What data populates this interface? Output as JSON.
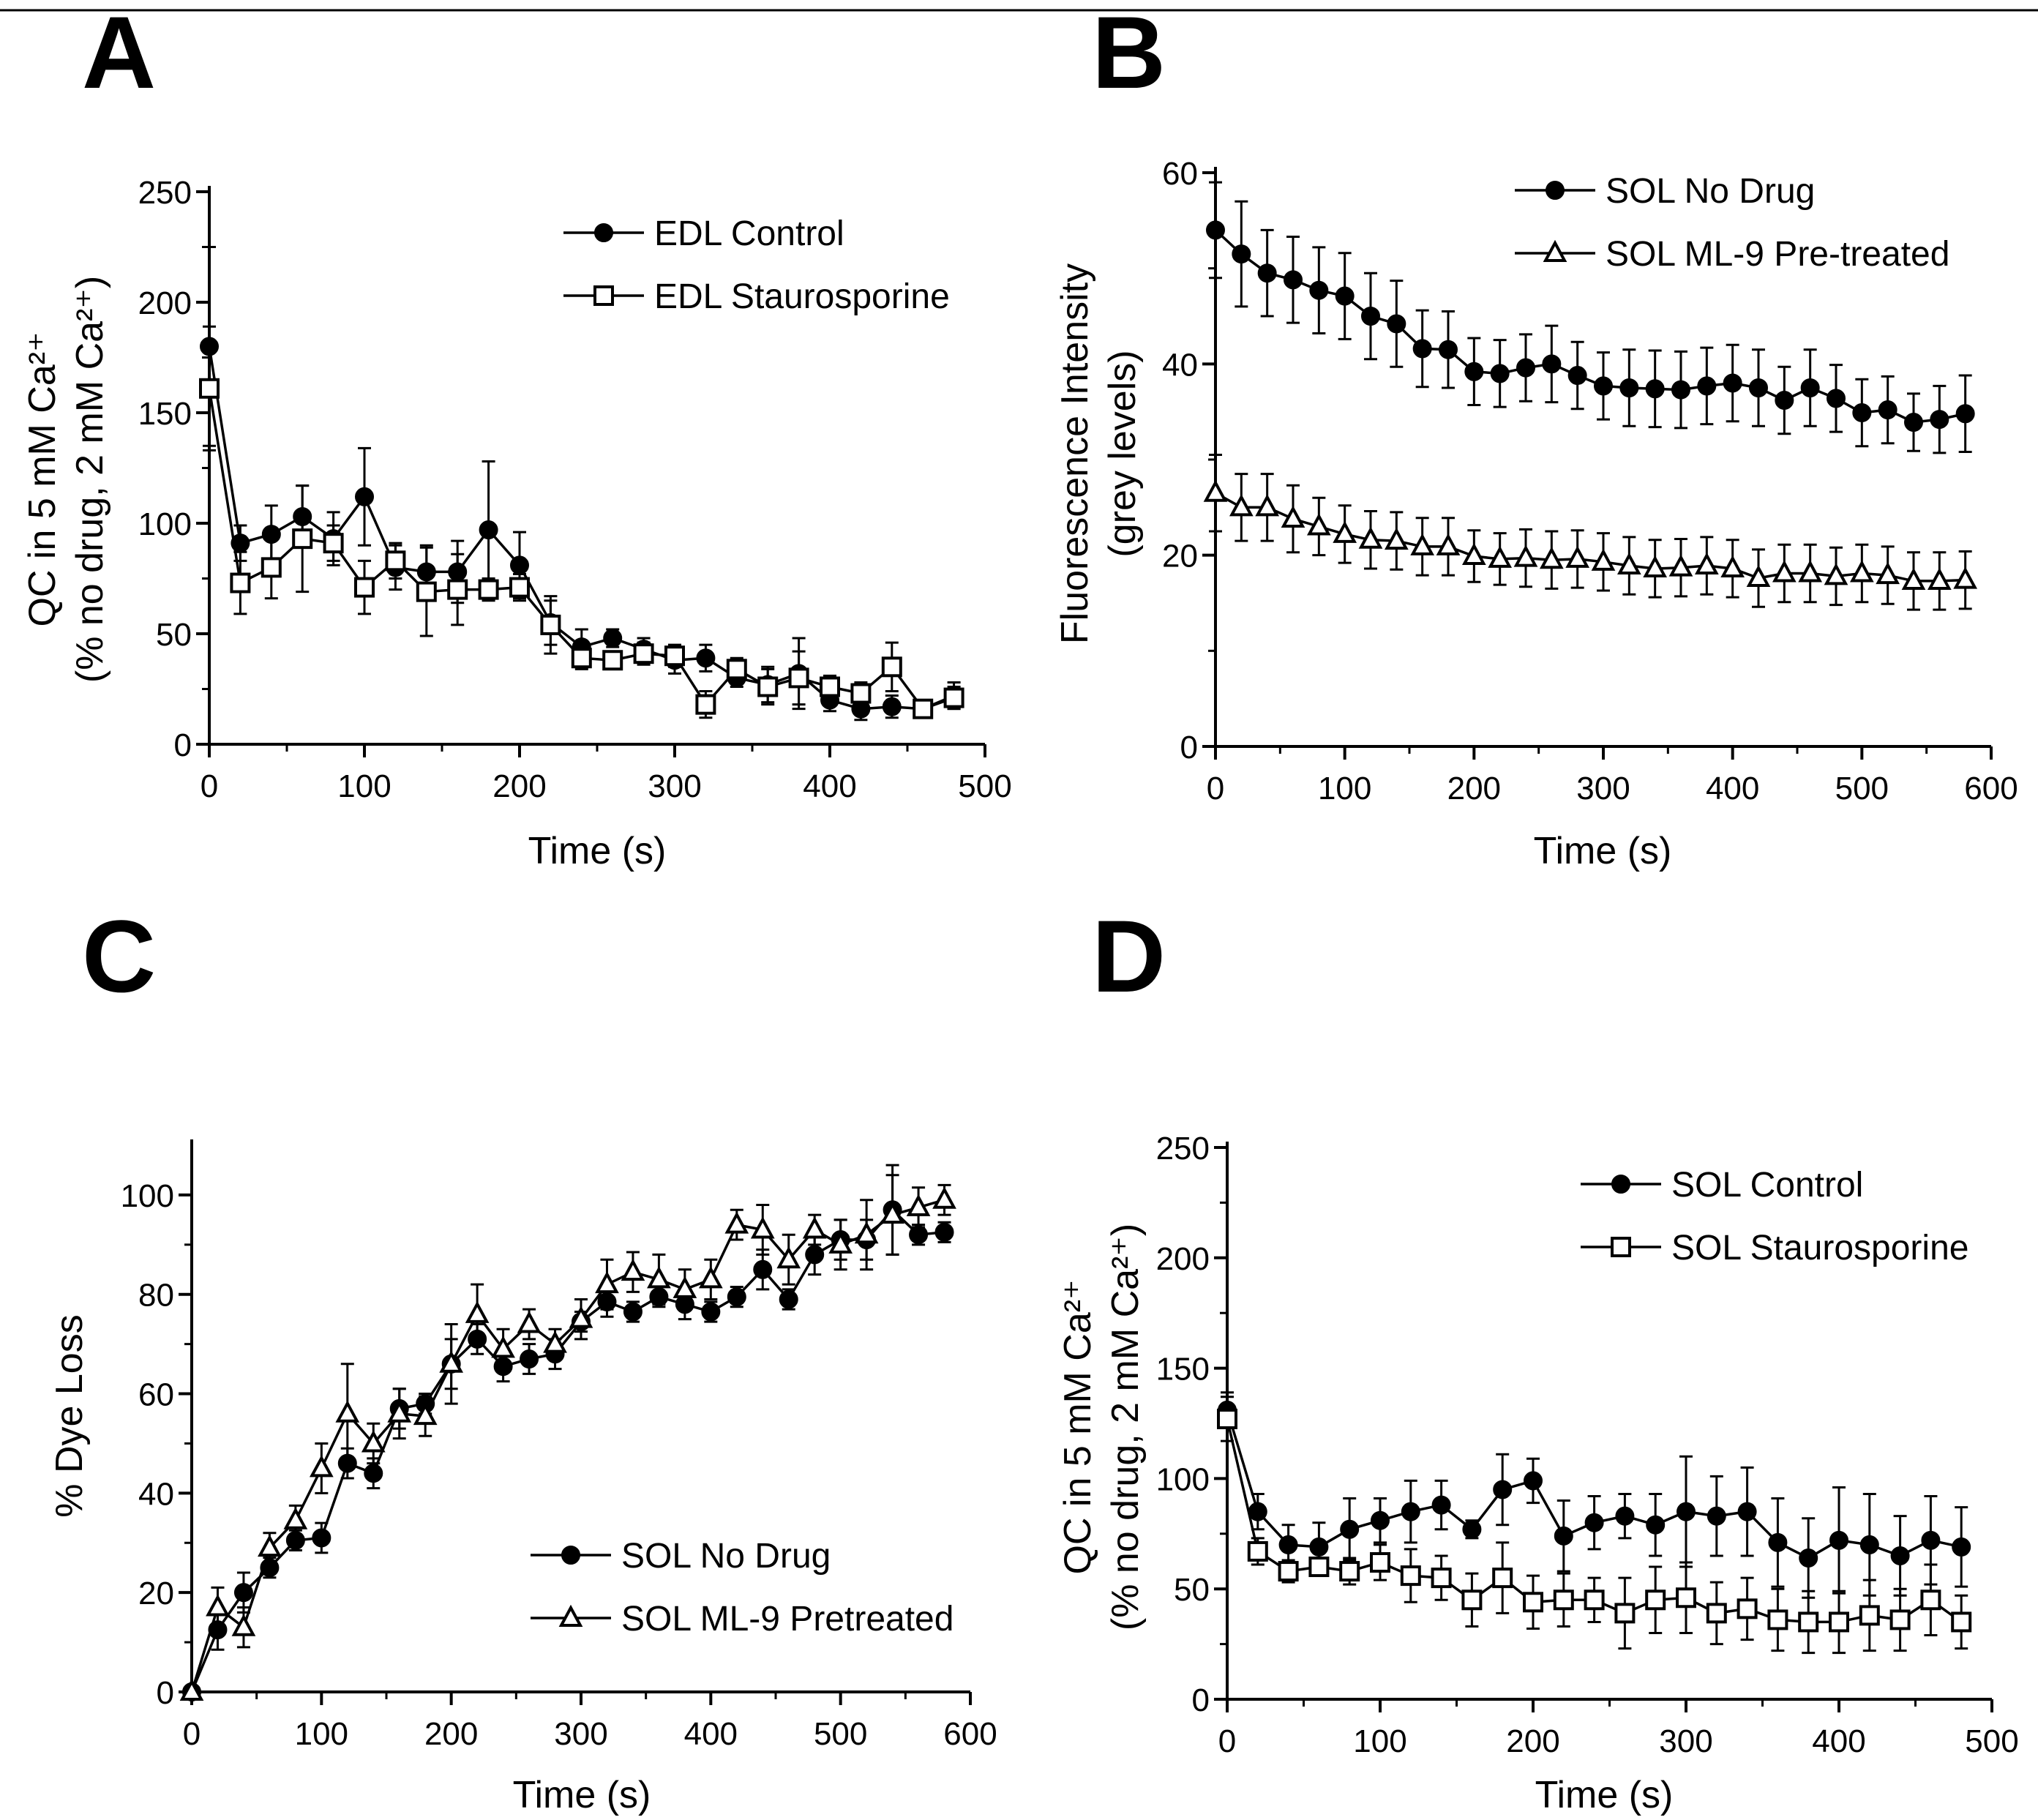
{
  "figure": {
    "top_rule": true
  },
  "chart_data": [
    {
      "panel": "A",
      "type": "line",
      "xlabel": "Time (s)",
      "ylabel_line1": "QC in 5 mM Ca²⁺",
      "ylabel_line2": "(% no drug, 2 mM Ca²⁺)",
      "xlim": [
        0,
        500
      ],
      "ylim": [
        0,
        250
      ],
      "xticks": [
        0,
        100,
        200,
        300,
        400,
        500
      ],
      "yticks": [
        0,
        50,
        100,
        150,
        200,
        250
      ],
      "legend_position": "top-right",
      "series": [
        {
          "name": "EDL Control",
          "marker": "filled-circle",
          "x": [
            0,
            20,
            40,
            60,
            80,
            100,
            120,
            140,
            160,
            180,
            200,
            220,
            240,
            260,
            280,
            300,
            320,
            340,
            360,
            380,
            400,
            420,
            440,
            460,
            480
          ],
          "y": [
            180,
            91,
            95,
            103,
            93,
            112,
            80,
            78,
            78,
            97,
            81,
            55,
            44,
            48,
            43,
            38,
            39,
            30,
            27,
            32,
            20,
            16,
            17,
            16,
            22
          ],
          "err": [
            45,
            8,
            13,
            14,
            12,
            22,
            10,
            12,
            14,
            31,
            15,
            10,
            8,
            4,
            5,
            6,
            6,
            4,
            8,
            16,
            5,
            5,
            5,
            3,
            6
          ]
        },
        {
          "name": "EDL Staurosporine",
          "marker": "open-square",
          "x": [
            0,
            20,
            40,
            60,
            80,
            100,
            120,
            140,
            160,
            180,
            200,
            220,
            240,
            260,
            280,
            300,
            320,
            340,
            360,
            380,
            400,
            420,
            440,
            460,
            480
          ],
          "y": [
            161,
            73,
            80,
            93,
            91,
            71,
            83,
            69,
            70,
            70,
            71,
            54,
            39,
            38,
            41,
            40,
            18,
            34,
            26,
            30,
            26,
            23,
            35,
            16,
            21
          ],
          "err": [
            28,
            14,
            14,
            24,
            8,
            12,
            8,
            20,
            16,
            5,
            6,
            13,
            5,
            4,
            5,
            5,
            6,
            5,
            8,
            12,
            5,
            5,
            11,
            3,
            5
          ]
        }
      ]
    },
    {
      "panel": "B",
      "type": "line",
      "xlabel": "Time (s)",
      "ylabel_line1": "Fluorescence Intensity",
      "ylabel_line2": "(grey levels)",
      "xlim": [
        0,
        600
      ],
      "ylim": [
        0,
        60
      ],
      "xticks": [
        0,
        100,
        200,
        300,
        400,
        500,
        600
      ],
      "yticks": [
        0,
        20,
        40,
        60
      ],
      "legend_position": "top-right",
      "series": [
        {
          "name": "SOL No Drug",
          "marker": "filled-circle",
          "x": [
            0,
            20,
            40,
            60,
            80,
            100,
            120,
            140,
            160,
            180,
            200,
            220,
            240,
            260,
            280,
            300,
            320,
            340,
            360,
            380,
            400,
            420,
            440,
            460,
            480,
            500,
            520,
            540,
            560,
            580
          ],
          "y": [
            54,
            51.5,
            49.5,
            48.8,
            47.7,
            47.1,
            45,
            44.2,
            41.6,
            41.5,
            39.2,
            39,
            39.6,
            40,
            38.8,
            37.7,
            37.5,
            37.4,
            37.3,
            37.7,
            38,
            37.5,
            36.2,
            37.5,
            36.4,
            34.9,
            35.2,
            33.9,
            34.2,
            34.8
          ],
          "err": [
            5,
            5.5,
            4.5,
            4.5,
            4.5,
            4.5,
            4.5,
            4.5,
            4,
            4,
            3.5,
            3.5,
            3.5,
            4,
            3.5,
            3.5,
            4,
            4,
            4,
            4,
            4,
            4,
            3.5,
            4,
            3.5,
            3.5,
            3.5,
            3,
            3.5,
            4
          ]
        },
        {
          "name": "SOL ML-9 Pre-treated",
          "marker": "open-triangle",
          "x": [
            0,
            20,
            40,
            60,
            80,
            100,
            120,
            140,
            160,
            180,
            200,
            220,
            240,
            260,
            280,
            300,
            320,
            340,
            360,
            380,
            400,
            420,
            440,
            460,
            480,
            500,
            520,
            540,
            560,
            580
          ],
          "y": [
            26.5,
            25,
            25,
            23.8,
            23,
            22.2,
            21.6,
            21.5,
            20.9,
            20.9,
            19.9,
            19.6,
            19.7,
            19.5,
            19.6,
            19.3,
            18.9,
            18.6,
            18.7,
            18.9,
            18.6,
            17.6,
            18.1,
            18.1,
            17.8,
            18.1,
            17.9,
            17.3,
            17.3,
            17.4
          ],
          "err": [
            4,
            3.5,
            3.5,
            3.5,
            3,
            3,
            3,
            3,
            3,
            3,
            2.7,
            2.7,
            3,
            3,
            3,
            3,
            3,
            3,
            3,
            3,
            3,
            3,
            3,
            3,
            3,
            3,
            3,
            3,
            3,
            3
          ]
        }
      ]
    },
    {
      "panel": "C",
      "type": "line",
      "xlabel": "Time (s)",
      "ylabel_line1": "% Dye Loss",
      "ylabel_line2": "",
      "xlim": [
        0,
        600
      ],
      "ylim": [
        0,
        110
      ],
      "xticks": [
        0,
        100,
        200,
        300,
        400,
        500,
        600
      ],
      "yticks": [
        0,
        20,
        40,
        60,
        80,
        100
      ],
      "legend_position": "bottom-right",
      "series": [
        {
          "name": "SOL No Drug",
          "marker": "filled-circle",
          "x": [
            0,
            20,
            40,
            60,
            80,
            100,
            120,
            140,
            160,
            180,
            200,
            220,
            240,
            260,
            280,
            300,
            320,
            340,
            360,
            380,
            400,
            420,
            440,
            460,
            480,
            500,
            520,
            540,
            560,
            580
          ],
          "y": [
            0,
            12.5,
            20,
            25,
            30.5,
            31,
            46,
            44,
            57,
            58,
            66,
            71,
            65.5,
            67,
            68,
            74.5,
            78.5,
            76.5,
            79.5,
            78,
            76.5,
            79.5,
            85,
            79,
            88,
            91,
            91,
            97,
            92,
            92.5
          ],
          "err": [
            0,
            4,
            4,
            2,
            2,
            3,
            3,
            3,
            4,
            2,
            5,
            3,
            3,
            3,
            3,
            2,
            3,
            2,
            2,
            3,
            2,
            2,
            4,
            2,
            4,
            4,
            4,
            9,
            2,
            2
          ]
        },
        {
          "name": "SOL ML-9 Pretreated",
          "marker": "open-triangle",
          "x": [
            0,
            20,
            40,
            60,
            80,
            100,
            120,
            140,
            160,
            180,
            200,
            220,
            240,
            260,
            280,
            300,
            320,
            340,
            360,
            380,
            400,
            420,
            440,
            460,
            480,
            500,
            520,
            540,
            560,
            580
          ],
          "y": [
            0,
            17,
            13,
            29,
            34.5,
            45,
            56,
            50,
            56,
            55.5,
            66,
            76,
            69,
            74,
            70,
            75,
            82,
            84.5,
            83,
            81,
            83,
            94,
            93,
            87,
            93,
            90,
            92,
            96,
            97.5,
            99
          ],
          "err": [
            0,
            4,
            4,
            3,
            3,
            5,
            10,
            4,
            5,
            4,
            8,
            6,
            4,
            3,
            3,
            4,
            5,
            4,
            5,
            4,
            4,
            3,
            5,
            5,
            3,
            5,
            7,
            8,
            4,
            3
          ]
        }
      ]
    },
    {
      "panel": "D",
      "type": "line",
      "xlabel": "Time (s)",
      "ylabel_line1": "QC in 5 mM Ca²⁺",
      "ylabel_line2": "(% no drug, 2 mM Ca²⁺)",
      "xlim": [
        0,
        500
      ],
      "ylim": [
        0,
        250
      ],
      "xticks": [
        0,
        100,
        200,
        300,
        400,
        500
      ],
      "yticks": [
        0,
        50,
        100,
        150,
        200,
        250
      ],
      "legend_position": "top-right",
      "series": [
        {
          "name": "SOL Control",
          "marker": "filled-circle",
          "x": [
            0,
            20,
            40,
            60,
            80,
            100,
            120,
            140,
            160,
            180,
            200,
            220,
            240,
            260,
            280,
            300,
            320,
            340,
            360,
            380,
            400,
            420,
            440,
            460,
            480
          ],
          "y": [
            131,
            85,
            70,
            69,
            77,
            81,
            85,
            88,
            77,
            95,
            99,
            74,
            80,
            83,
            79,
            85,
            83,
            85,
            71,
            64,
            72,
            70,
            65,
            72,
            69
          ],
          "err": [
            8,
            8,
            9,
            11,
            14,
            10,
            14,
            11,
            4,
            16,
            10,
            16,
            12,
            10,
            14,
            25,
            18,
            20,
            20,
            18,
            24,
            23,
            18,
            20,
            18
          ]
        },
        {
          "name": "SOL Staurosporine",
          "marker": "open-square",
          "x": [
            0,
            20,
            40,
            60,
            80,
            100,
            120,
            140,
            160,
            180,
            200,
            220,
            240,
            260,
            280,
            300,
            320,
            340,
            360,
            380,
            400,
            420,
            440,
            460,
            480
          ],
          "y": [
            127,
            67,
            58,
            60,
            58,
            62,
            56,
            55,
            45,
            55,
            44,
            45,
            45,
            39,
            45,
            46,
            39,
            41,
            36,
            35,
            35,
            38,
            36,
            45,
            35
          ],
          "err": [
            10,
            6,
            5,
            4,
            6,
            8,
            12,
            10,
            12,
            16,
            12,
            12,
            10,
            16,
            15,
            16,
            14,
            14,
            14,
            14,
            14,
            16,
            14,
            16,
            12
          ]
        }
      ]
    }
  ]
}
